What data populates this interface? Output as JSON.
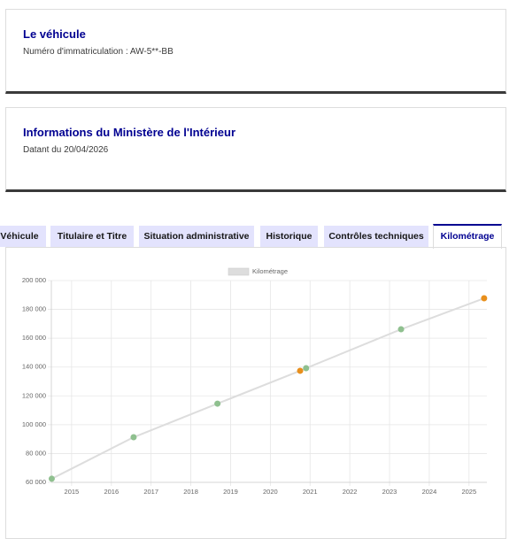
{
  "cards": [
    {
      "title": "Le véhicule",
      "text": "Numéro d'immatriculation : AW-5**-BB"
    },
    {
      "title": "Informations du Ministère de l'Intérieur",
      "text": "Datant du 20/04/2026"
    }
  ],
  "tabs": [
    "Véhicule",
    "Titulaire et Titre",
    "Situation administrative",
    "Historique",
    "Contrôles techniques",
    "Kilométrage"
  ],
  "chart_data": {
    "type": "line",
    "x": [
      2014.5,
      2016.56,
      2018.67,
      2020.75,
      2020.9,
      2023.29,
      2025.38
    ],
    "series": [
      {
        "name": "Kilométrage",
        "color": "#dddddd",
        "point_colors": [
          "#8fc08f",
          "#8fc08f",
          "#8fc08f",
          "#e88f1c",
          "#8fc08f",
          "#8fc08f",
          "#e88f1c"
        ],
        "values": [
          62500,
          91300,
          114600,
          137400,
          139200,
          166200,
          187700
        ]
      }
    ],
    "xlim": [
      2014.49,
      2025.45
    ],
    "xticks": [
      2015,
      2016,
      2017,
      2018,
      2019,
      2020,
      2021,
      2022,
      2023,
      2024,
      2025
    ],
    "ylim": [
      60000,
      200000
    ],
    "yticks": [
      {
        "value": 60000,
        "label": "60 000"
      },
      {
        "value": 80000,
        "label": "80 000"
      },
      {
        "value": 100000,
        "label": "100 000"
      },
      {
        "value": 120000,
        "label": "120 000"
      },
      {
        "value": 140000,
        "label": "140 000"
      },
      {
        "value": 160000,
        "label": "160 000"
      },
      {
        "value": 180000,
        "label": "180 000"
      },
      {
        "value": 200000,
        "label": "200 000"
      }
    ],
    "grid": true
  }
}
